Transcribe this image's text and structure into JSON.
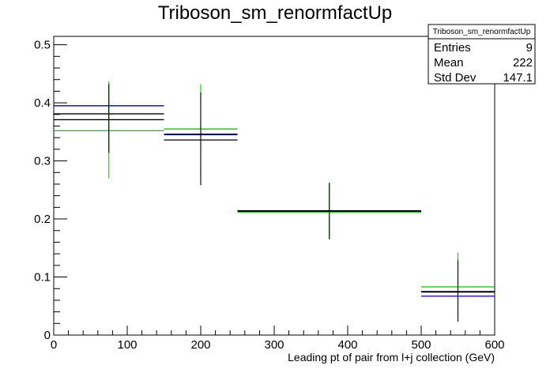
{
  "chart_data": {
    "type": "histogram",
    "title": "Triboson_sm_renormfactUp",
    "xlabel": "Leading pt of pair from l+j collection (GeV)",
    "ylabel": "",
    "xlim": [
      0,
      600
    ],
    "ylim": [
      0,
      0.5
    ],
    "x_ticks": [
      "0",
      "100",
      "200",
      "300",
      "400",
      "500",
      "600"
    ],
    "y_ticks": [
      "0",
      "0.1",
      "0.2",
      "0.3",
      "0.4",
      "0.5"
    ],
    "bin_edges": [
      0,
      150,
      250,
      500,
      600
    ],
    "series": [
      {
        "color": "#00cc00",
        "values": [
          0.352,
          0.355,
          0.212,
          0.083
        ],
        "err_low": [
          0.27,
          0.275,
          0.165,
          0.027
        ],
        "err_high": [
          0.437,
          0.432,
          0.263,
          0.142
        ]
      },
      {
        "color": "#000000",
        "values": [
          0.371,
          0.336,
          0.213,
          0.074
        ],
        "err_low": [
          0.314,
          0.258,
          0.165,
          0.023
        ],
        "err_high": [
          0.432,
          0.418,
          0.262,
          0.129
        ]
      },
      {
        "color": "#0000cc",
        "values": [
          0.395,
          0.345,
          0.214,
          0.067
        ],
        "err_low": null,
        "err_high": null
      }
    ],
    "black_companion": [
      0.381,
      0.346,
      0.214,
      0.075
    ],
    "stats_box": {
      "title": "Triboson_sm_renormfactUp",
      "rows": [
        {
          "label": "Entries",
          "value": "9"
        },
        {
          "label": "Mean",
          "value": "222"
        },
        {
          "label": "Std Dev",
          "value": "147.1"
        }
      ]
    },
    "grid": false,
    "legend": "none"
  }
}
